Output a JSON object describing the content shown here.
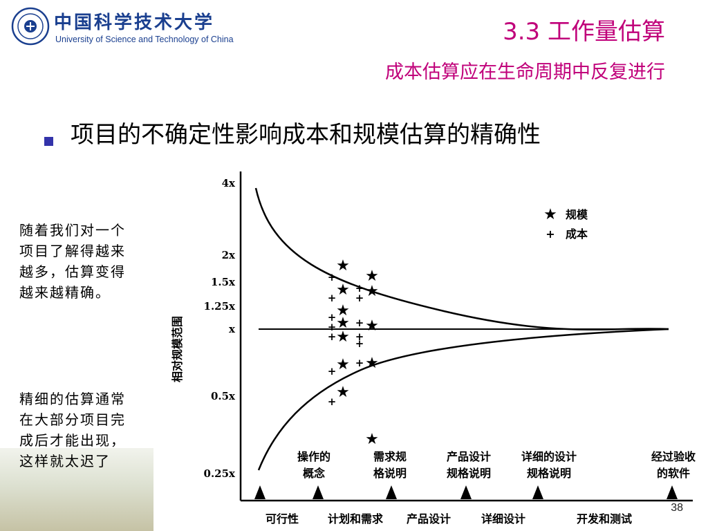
{
  "header": {
    "school_name_cn": "中国科学技术大学",
    "school_name_en": "University of Science and Technology of China",
    "title": "3.3 工作量估算",
    "subtitle": "成本估算应在生命周期中反复进行"
  },
  "bullet_text": "项目的不确定性影响成本和规模估算的精确性",
  "side_notes": [
    "随着我们对一个项目了解得越来越多，估算变得越来越精确。",
    "精细的估算通常在大部分项目完成后才能出现，这样就太迟了"
  ],
  "diagram": {
    "y_axis_label": "相对规模范围",
    "y_ticks": [
      "4x",
      "2x",
      "1.5x",
      "1.25x",
      "x",
      "0.5x",
      "0.25x"
    ],
    "legend": [
      {
        "symbol": "star",
        "label": "规模"
      },
      {
        "symbol": "plus",
        "label": "成本"
      }
    ],
    "milestones_top": [
      [
        "操作的",
        "概念"
      ],
      [
        "需求规",
        "格说明"
      ],
      [
        "产品设计",
        "规格说明"
      ],
      [
        "详细的设计",
        "规格说明"
      ],
      [
        "经过验收",
        "的软件"
      ]
    ],
    "phases": [
      "可行性",
      "计划和需求",
      "产品设计",
      "详细设计",
      "开发和测试"
    ]
  },
  "page_number": "38",
  "colors": {
    "title": "#c0007a",
    "school": "#1a3f8f",
    "bullet": "#3333aa",
    "text": "#000000"
  }
}
